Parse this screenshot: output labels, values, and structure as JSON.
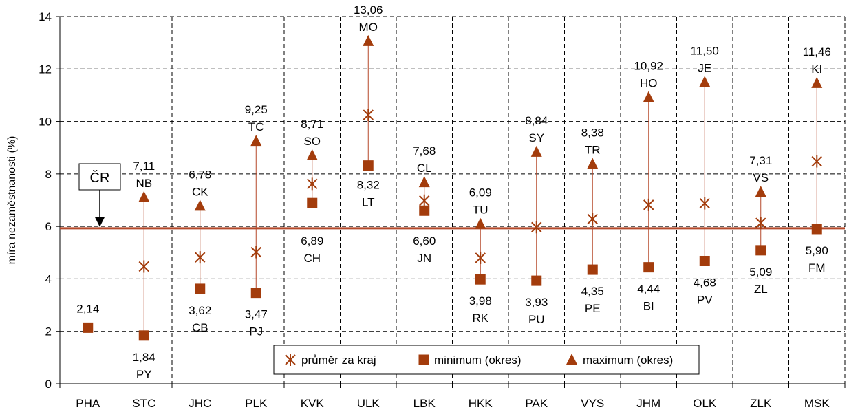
{
  "chart_data": {
    "type": "scatter",
    "categories": [
      "PHA",
      "STC",
      "JHC",
      "PLK",
      "KVK",
      "ULK",
      "LBK",
      "HKK",
      "PAK",
      "VYS",
      "JHM",
      "OLK",
      "ZLK",
      "MSK"
    ],
    "ylabel": "míra nezaměstnanosti (%)",
    "xlabel": "",
    "ylim": [
      0,
      14
    ],
    "yticks": [
      0,
      2,
      4,
      6,
      8,
      10,
      12,
      14
    ],
    "grid": true,
    "legend_position": "bottom-center",
    "reference_line": {
      "label": "ČR",
      "value": 5.93
    },
    "series": [
      {
        "name": "průměr za kraj",
        "marker": "x",
        "values": [
          null,
          4.47,
          4.82,
          5.02,
          7.62,
          10.25,
          6.98,
          4.8,
          5.97,
          6.28,
          6.82,
          6.88,
          6.13,
          8.48
        ]
      },
      {
        "name": "minimum (okres)",
        "marker": "square",
        "values": [
          2.14,
          1.84,
          3.62,
          3.47,
          6.89,
          8.32,
          6.6,
          3.98,
          3.93,
          4.35,
          4.44,
          4.68,
          5.09,
          5.9
        ],
        "value_labels": [
          "2,14",
          "1,84",
          "3,62",
          "3,47",
          "6,89",
          "8,32",
          "6,60",
          "3,98",
          "3,93",
          "4,35",
          "4,44",
          "4,68",
          "5,09",
          "5,90"
        ],
        "districts": [
          "",
          "PY",
          "CB",
          "PJ",
          "CH",
          "LT",
          "JN",
          "RK",
          "PU",
          "PE",
          "BI",
          "PV",
          "ZL",
          "FM"
        ]
      },
      {
        "name": "maximum (okres)",
        "marker": "triangle",
        "values": [
          null,
          7.11,
          6.78,
          9.25,
          8.71,
          13.06,
          7.68,
          6.09,
          8.84,
          8.38,
          10.92,
          11.5,
          7.31,
          11.46
        ],
        "value_labels": [
          "",
          "7,11",
          "6,78",
          "9,25",
          "8,71",
          "13,06",
          "7,68",
          "6,09",
          "8,84",
          "8,38",
          "10,92",
          "11,50",
          "7,31",
          "11,46"
        ],
        "districts": [
          "",
          "NB",
          "CK",
          "TC",
          "SO",
          "MO",
          "CL",
          "TU",
          "SY",
          "TR",
          "HO",
          "JE",
          "VS",
          "KI"
        ]
      }
    ],
    "colors": {
      "markers": "#a33c0c",
      "line": "#b5492a",
      "grid": "#000000"
    }
  }
}
